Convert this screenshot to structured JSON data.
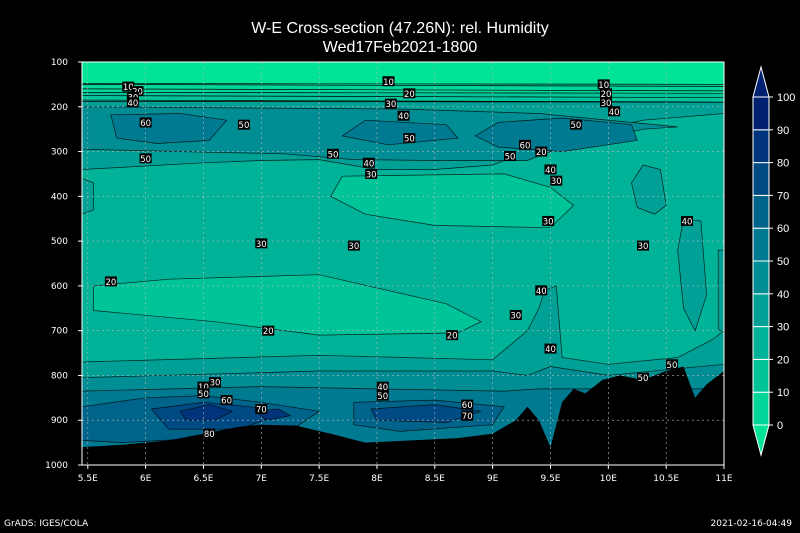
{
  "chart_data": {
    "type": "heatmap",
    "title": "W-E Cross-section (47.26N): rel. Humidity",
    "subtitle": "Wed17Feb2021-1800",
    "xlabel": "",
    "ylabel": "",
    "x_ticks": [
      "5.5E",
      "6E",
      "6.5E",
      "7E",
      "7.5E",
      "8E",
      "8.5E",
      "9E",
      "9.5E",
      "10E",
      "10.5E",
      "11E"
    ],
    "x_values": [
      5.5,
      6,
      6.5,
      7,
      7.5,
      8,
      8.5,
      9,
      9.5,
      10,
      10.5,
      11
    ],
    "y_ticks": [
      "100",
      "200",
      "300",
      "400",
      "500",
      "600",
      "700",
      "800",
      "900",
      "1000"
    ],
    "y_values": [
      100,
      200,
      300,
      400,
      500,
      600,
      700,
      800,
      900,
      1000
    ],
    "xlim": [
      5.45,
      11.0
    ],
    "ylim": [
      1000,
      100
    ],
    "grid": true,
    "colorbar": {
      "levels": [
        0,
        10,
        20,
        30,
        40,
        50,
        60,
        70,
        80,
        90,
        100
      ],
      "tick_labels": [
        "0",
        "10",
        "20",
        "30",
        "40",
        "50",
        "60",
        "70",
        "80",
        "90",
        "100"
      ],
      "colors": [
        "#00e49a",
        "#00d69a",
        "#00c499",
        "#00b298",
        "#00a096",
        "#008e94",
        "#007a90",
        "#00638a",
        "#004a84",
        "#00357c",
        "#002070"
      ]
    },
    "contour_labels": [
      {
        "value": "10",
        "x": 5.85,
        "p": 155
      },
      {
        "value": "20",
        "x": 5.93,
        "p": 165
      },
      {
        "value": "30",
        "x": 5.89,
        "p": 178
      },
      {
        "value": "40",
        "x": 5.89,
        "p": 190
      },
      {
        "value": "60",
        "x": 6.0,
        "p": 235
      },
      {
        "value": "50",
        "x": 6.85,
        "p": 240
      },
      {
        "value": "50",
        "x": 6.0,
        "p": 315
      },
      {
        "value": "30",
        "x": 7.0,
        "p": 505
      },
      {
        "value": "20",
        "x": 7.06,
        "p": 700
      },
      {
        "value": "10",
        "x": 8.1,
        "p": 143
      },
      {
        "value": "20",
        "x": 8.28,
        "p": 170
      },
      {
        "value": "30",
        "x": 8.12,
        "p": 193
      },
      {
        "value": "40",
        "x": 8.23,
        "p": 220
      },
      {
        "value": "50",
        "x": 8.28,
        "p": 270
      },
      {
        "value": "50",
        "x": 7.62,
        "p": 305
      },
      {
        "value": "40",
        "x": 7.93,
        "p": 325
      },
      {
        "value": "30",
        "x": 7.95,
        "p": 350
      },
      {
        "value": "30",
        "x": 7.8,
        "p": 510
      },
      {
        "value": "20",
        "x": 9.42,
        "p": 300
      },
      {
        "value": "60",
        "x": 9.28,
        "p": 285
      },
      {
        "value": "50",
        "x": 9.15,
        "p": 310
      },
      {
        "value": "40",
        "x": 9.5,
        "p": 340
      },
      {
        "value": "30",
        "x": 9.55,
        "p": 365
      },
      {
        "value": "30",
        "x": 9.48,
        "p": 455
      },
      {
        "value": "10",
        "x": 9.96,
        "p": 150
      },
      {
        "value": "20",
        "x": 9.98,
        "p": 170
      },
      {
        "value": "30",
        "x": 9.98,
        "p": 190
      },
      {
        "value": "40",
        "x": 10.05,
        "p": 210
      },
      {
        "value": "50",
        "x": 9.72,
        "p": 240
      },
      {
        "value": "30",
        "x": 10.3,
        "p": 510
      },
      {
        "value": "40",
        "x": 10.68,
        "p": 455
      },
      {
        "value": "30",
        "x": 9.2,
        "p": 665
      },
      {
        "value": "40",
        "x": 9.42,
        "p": 610
      },
      {
        "value": "40",
        "x": 9.5,
        "p": 740
      },
      {
        "value": "20",
        "x": 5.7,
        "p": 590
      },
      {
        "value": "20",
        "x": 8.65,
        "p": 710
      },
      {
        "value": "30",
        "x": 6.6,
        "p": 815
      },
      {
        "value": "10",
        "x": 6.5,
        "p": 825
      },
      {
        "value": "50",
        "x": 6.5,
        "p": 840
      },
      {
        "value": "60",
        "x": 6.7,
        "p": 855
      },
      {
        "value": "70",
        "x": 7.0,
        "p": 875
      },
      {
        "value": "80",
        "x": 6.55,
        "p": 930
      },
      {
        "value": "40",
        "x": 8.05,
        "p": 825
      },
      {
        "value": "50",
        "x": 8.05,
        "p": 845
      },
      {
        "value": "60",
        "x": 8.78,
        "p": 865
      },
      {
        "value": "70",
        "x": 8.78,
        "p": 890
      },
      {
        "value": "50",
        "x": 10.3,
        "p": 805
      },
      {
        "value": "50",
        "x": 10.55,
        "p": 775
      }
    ]
  },
  "footer": {
    "left": "GrADS: IGES/COLA",
    "right": "2021-02-16-04:49"
  }
}
